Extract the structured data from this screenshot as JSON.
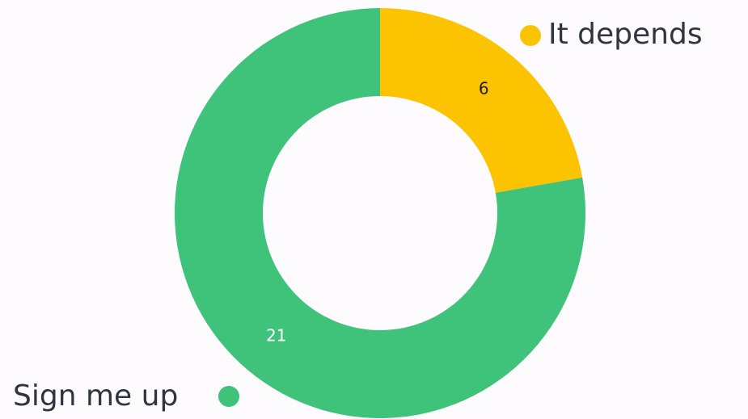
{
  "chart_data": {
    "type": "pie",
    "donut": true,
    "categories": [
      "It depends",
      "Sign me up"
    ],
    "values": [
      6,
      21
    ],
    "colors": [
      "#fcc400",
      "#3fc279"
    ]
  }
}
